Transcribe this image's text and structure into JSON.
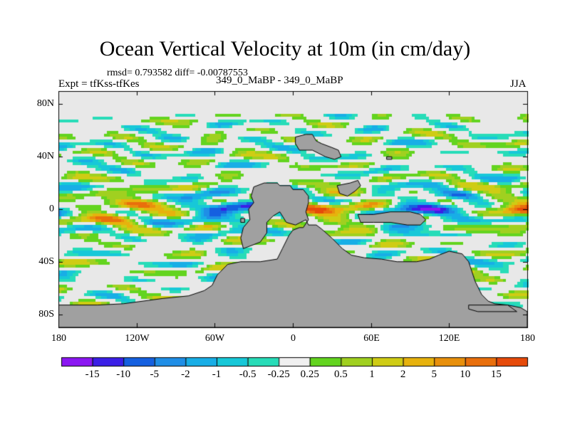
{
  "chart_data": {
    "type": "heatmap",
    "title": "Ocean Vertical Velocity at 10m (in cm/day)",
    "stats": "rmsd= 0.793582 diff= -0.00787553",
    "left_label": "Expt = tfKss-tfKes",
    "center_label": "349_0_MaBP - 349_0_MaBP",
    "right_label": "JJA",
    "x_ticks": [
      {
        "value": -180,
        "label": "180"
      },
      {
        "value": -120,
        "label": "120W"
      },
      {
        "value": -60,
        "label": "60W"
      },
      {
        "value": 0,
        "label": "0"
      },
      {
        "value": 60,
        "label": "60E"
      },
      {
        "value": 120,
        "label": "120E"
      },
      {
        "value": 180,
        "label": "180"
      }
    ],
    "y_ticks": [
      {
        "value": 80,
        "label": "80N"
      },
      {
        "value": 40,
        "label": "40N"
      },
      {
        "value": 0,
        "label": "0"
      },
      {
        "value": -40,
        "label": "40S"
      },
      {
        "value": -80,
        "label": "80S"
      }
    ],
    "xlim": [
      -180,
      180
    ],
    "ylim": [
      -90,
      90
    ],
    "colorbar": {
      "labels": [
        "-15",
        "-10",
        "-5",
        "-2",
        "-1",
        "-0.5",
        "-0.25",
        "0.25",
        "0.5",
        "1",
        "2",
        "5",
        "10",
        "15"
      ],
      "colors": [
        "#8b17f2",
        "#3b1fe6",
        "#1560e0",
        "#1f8ee6",
        "#18aee6",
        "#17c8d8",
        "#27dcb8",
        "#f0f0f0",
        "#63d41f",
        "#a0d020",
        "#cfcc14",
        "#e7b20d",
        "#e8900c",
        "#e96f0c",
        "#e64a0a"
      ]
    },
    "land_color": "#a0a0a0",
    "ocean_bg": "#e8e8e8",
    "land_polygons": [
      {
        "name": "south-america-antarctica",
        "points": [
          [
            -30,
            17
          ],
          [
            -22,
            20
          ],
          [
            -12,
            20
          ],
          [
            -10,
            18
          ],
          [
            -2,
            18
          ],
          [
            0,
            15
          ],
          [
            8,
            15
          ],
          [
            12,
            10
          ],
          [
            12,
            5
          ],
          [
            10,
            -2
          ],
          [
            12,
            -8
          ],
          [
            8,
            -14
          ],
          [
            5,
            -14
          ],
          [
            0,
            -16
          ],
          [
            -3,
            -20
          ],
          [
            -8,
            -30
          ],
          [
            -12,
            -38
          ],
          [
            -25,
            -40
          ],
          [
            -40,
            -40
          ],
          [
            -50,
            -42
          ],
          [
            -58,
            -50
          ],
          [
            -62,
            -58
          ],
          [
            -68,
            -62
          ],
          [
            -80,
            -66
          ],
          [
            -100,
            -68
          ],
          [
            -130,
            -72
          ],
          [
            -150,
            -73
          ],
          [
            -180,
            -73
          ],
          [
            -180,
            -90
          ],
          [
            180,
            -90
          ],
          [
            180,
            -78
          ],
          [
            175,
            -75
          ],
          [
            165,
            -73
          ],
          [
            155,
            -72
          ],
          [
            150,
            -70
          ],
          [
            145,
            -65
          ],
          [
            140,
            -55
          ],
          [
            135,
            -40
          ],
          [
            130,
            -34
          ],
          [
            120,
            -32
          ],
          [
            112,
            -35
          ],
          [
            105,
            -38
          ],
          [
            95,
            -40
          ],
          [
            80,
            -40
          ],
          [
            68,
            -38
          ],
          [
            55,
            -37
          ],
          [
            45,
            -35
          ],
          [
            38,
            -30
          ],
          [
            30,
            -22
          ],
          [
            22,
            -15
          ],
          [
            18,
            -12
          ],
          [
            12,
            -12
          ],
          [
            10,
            -8
          ],
          [
            2,
            -12
          ],
          [
            -5,
            -10
          ],
          [
            -10,
            -2
          ],
          [
            -15,
            -5
          ],
          [
            -20,
            -10
          ],
          [
            -20,
            -18
          ],
          [
            -25,
            -25
          ],
          [
            -38,
            -30
          ],
          [
            -40,
            -22
          ],
          [
            -38,
            -14
          ],
          [
            -33,
            -8
          ],
          [
            -34,
            0
          ],
          [
            -30,
            5
          ],
          [
            -32,
            10
          ],
          [
            -30,
            17
          ]
        ]
      },
      {
        "name": "eurasia-north",
        "points": [
          [
            2,
            55
          ],
          [
            10,
            57
          ],
          [
            15,
            57
          ],
          [
            18,
            52
          ],
          [
            22,
            50
          ],
          [
            30,
            47
          ],
          [
            35,
            45
          ],
          [
            37,
            40
          ],
          [
            32,
            38
          ],
          [
            25,
            40
          ],
          [
            15,
            45
          ],
          [
            5,
            45
          ],
          [
            2,
            50
          ]
        ]
      },
      {
        "name": "central-asia",
        "points": [
          [
            34,
            18
          ],
          [
            44,
            20
          ],
          [
            50,
            22
          ],
          [
            52,
            18
          ],
          [
            48,
            14
          ],
          [
            42,
            10
          ],
          [
            36,
            12
          ]
        ]
      },
      {
        "name": "indonesia-block",
        "points": [
          [
            50,
            -4
          ],
          [
            62,
            -4
          ],
          [
            75,
            -2
          ],
          [
            90,
            -2
          ],
          [
            98,
            -4
          ],
          [
            102,
            -8
          ],
          [
            98,
            -12
          ],
          [
            88,
            -12
          ],
          [
            75,
            -10
          ],
          [
            62,
            -10
          ],
          [
            52,
            -10
          ]
        ]
      },
      {
        "name": "small-island",
        "points": [
          [
            -40,
            -7
          ],
          [
            -37,
            -7
          ],
          [
            -37,
            -10
          ],
          [
            -40,
            -10
          ]
        ]
      },
      {
        "name": "east-island",
        "points": [
          [
            72,
            40
          ],
          [
            76,
            40
          ],
          [
            76,
            38
          ],
          [
            72,
            38
          ]
        ]
      },
      {
        "name": "south-pacific-island",
        "points": [
          [
            135,
            -73
          ],
          [
            165,
            -73
          ],
          [
            172,
            -78
          ],
          [
            142,
            -78
          ],
          [
            135,
            -76
          ]
        ]
      }
    ]
  }
}
